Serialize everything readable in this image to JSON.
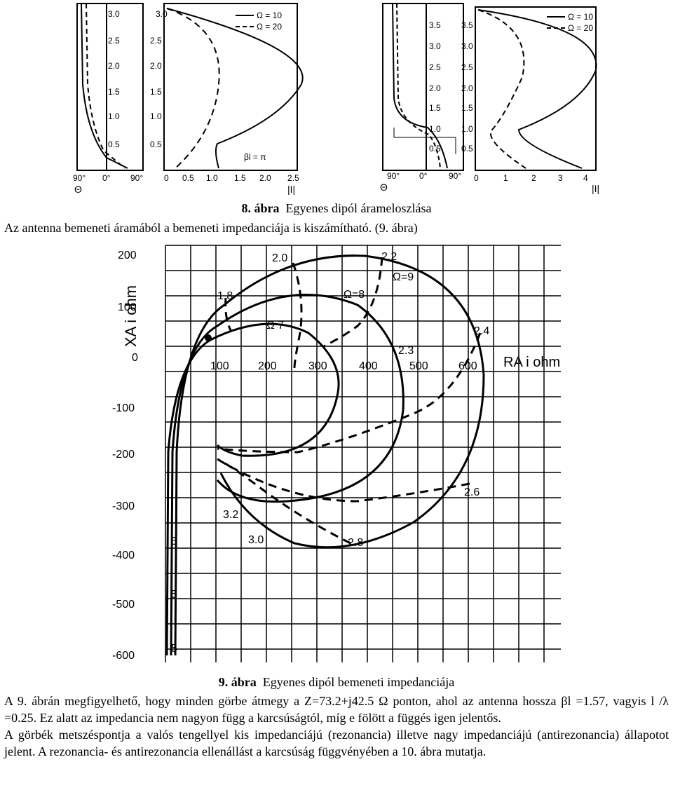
{
  "figure8": {
    "caption_num": "8. ábra",
    "caption_text": "Egyenes dipól árameloszlása",
    "panel1": {
      "ticks": [
        "3.0",
        "2.5",
        "2.0",
        "1.5",
        "1.0",
        "0.5"
      ],
      "xticks": [
        "90°",
        "0°",
        "90°"
      ],
      "xlabel": "Θ"
    },
    "panel2": {
      "ticks": [
        "3.0",
        "2.5",
        "2.0",
        "1.5",
        "1.0",
        "0.5"
      ],
      "xticks": [
        "0",
        "0.5",
        "1.0",
        "1.5",
        "2.0",
        "2.5"
      ],
      "xlabel": "|I|",
      "legend": [
        "Ω = 10",
        "Ω = 20"
      ],
      "annotation": "βl = π"
    },
    "panel3": {
      "ticks": [
        "3.5",
        "3.0",
        "2.5",
        "2.0",
        "1.5",
        "1.0",
        "0.5"
      ],
      "xticks": [
        "90°",
        "0°",
        "90°"
      ],
      "xlabel": "Θ"
    },
    "panel4": {
      "ticks": [
        "3.5",
        "3.0",
        "2.5",
        "2.0",
        "1.5",
        "1.0",
        "0.5"
      ],
      "xticks": [
        "0",
        "1",
        "2",
        "3",
        "4"
      ],
      "xlabel": "|I|",
      "legend": [
        "Ω = 10",
        "Ω = 20"
      ]
    }
  },
  "intro_line": "Az antenna bemeneti áramából a bemeneti impedanciája is kiszámítható. (9. ábra)",
  "figure9": {
    "caption_num": "9. ábra",
    "caption_text": "Egyenes dipól bemeneti impedanciája",
    "ylabel": "XA i ohm",
    "xlabel": "RA i ohm",
    "yticks": [
      "200",
      "100",
      "0",
      "-100",
      "-200",
      "-300",
      "-400",
      "-500",
      "-600"
    ],
    "xticks": [
      "100",
      "200",
      "300",
      "400",
      "500",
      "600"
    ],
    "curve_labels": [
      "Ω 7",
      "Ω=8",
      "Ω=9"
    ],
    "point_labels": [
      "1.8",
      "2.0",
      "2.2",
      "2.3",
      "2.4",
      "2.6",
      "2.8",
      "3.0",
      "3.2",
      "5",
      "5",
      "5"
    ]
  },
  "paragraph1": "A 9. ábrán megfigyelhető, hogy minden görbe átmegy a Z=73.2+j42.5 Ω ponton, ahol az antenna hossza βl =1.57, vagyis l /λ =0.25. Ez alatt az impedancia nem nagyon függ a karcsúságtól, míg e fölött a függés igen jelentős.",
  "paragraph2": "A görbék metszéspontja a valós tengellyel kis impedanciájú (rezonancia) illetve nagy impedanciájú (antirezonancia) állapotot jelent. A rezonancia- és antirezonancia ellenállást a karcsúság függvényében a 10. ábra mutatja."
}
